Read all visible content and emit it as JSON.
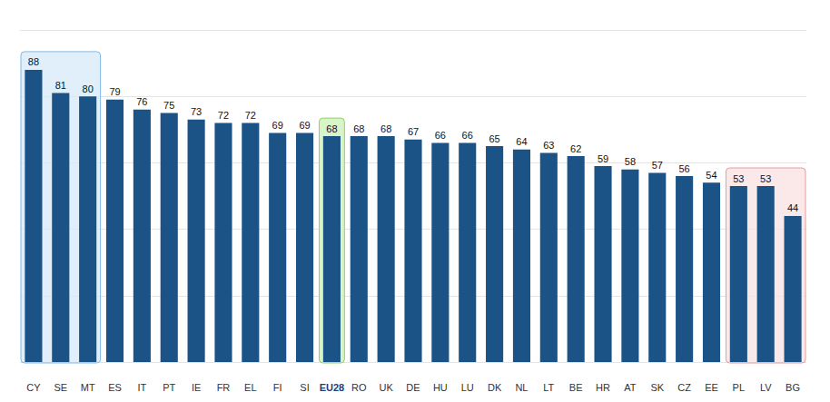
{
  "chart_data": {
    "type": "bar",
    "categories": [
      "CY",
      "SE",
      "MT",
      "ES",
      "IT",
      "PT",
      "IE",
      "FR",
      "EL",
      "FI",
      "SI",
      "EU28",
      "RO",
      "UK",
      "DE",
      "HU",
      "LU",
      "DK",
      "NL",
      "LT",
      "BE",
      "HR",
      "AT",
      "SK",
      "CZ",
      "EE",
      "PL",
      "LV",
      "BG"
    ],
    "values": [
      88,
      81,
      80,
      79,
      76,
      75,
      73,
      72,
      72,
      69,
      69,
      68,
      68,
      68,
      67,
      66,
      66,
      65,
      64,
      63,
      62,
      59,
      58,
      57,
      56,
      54,
      53,
      53,
      44
    ],
    "color": "#1b5386",
    "ylim": [
      0,
      100
    ],
    "yticks": [
      0,
      20,
      40,
      60,
      80,
      100
    ],
    "grid": true,
    "data_labels": true,
    "tick_labels": "x"
  }
}
